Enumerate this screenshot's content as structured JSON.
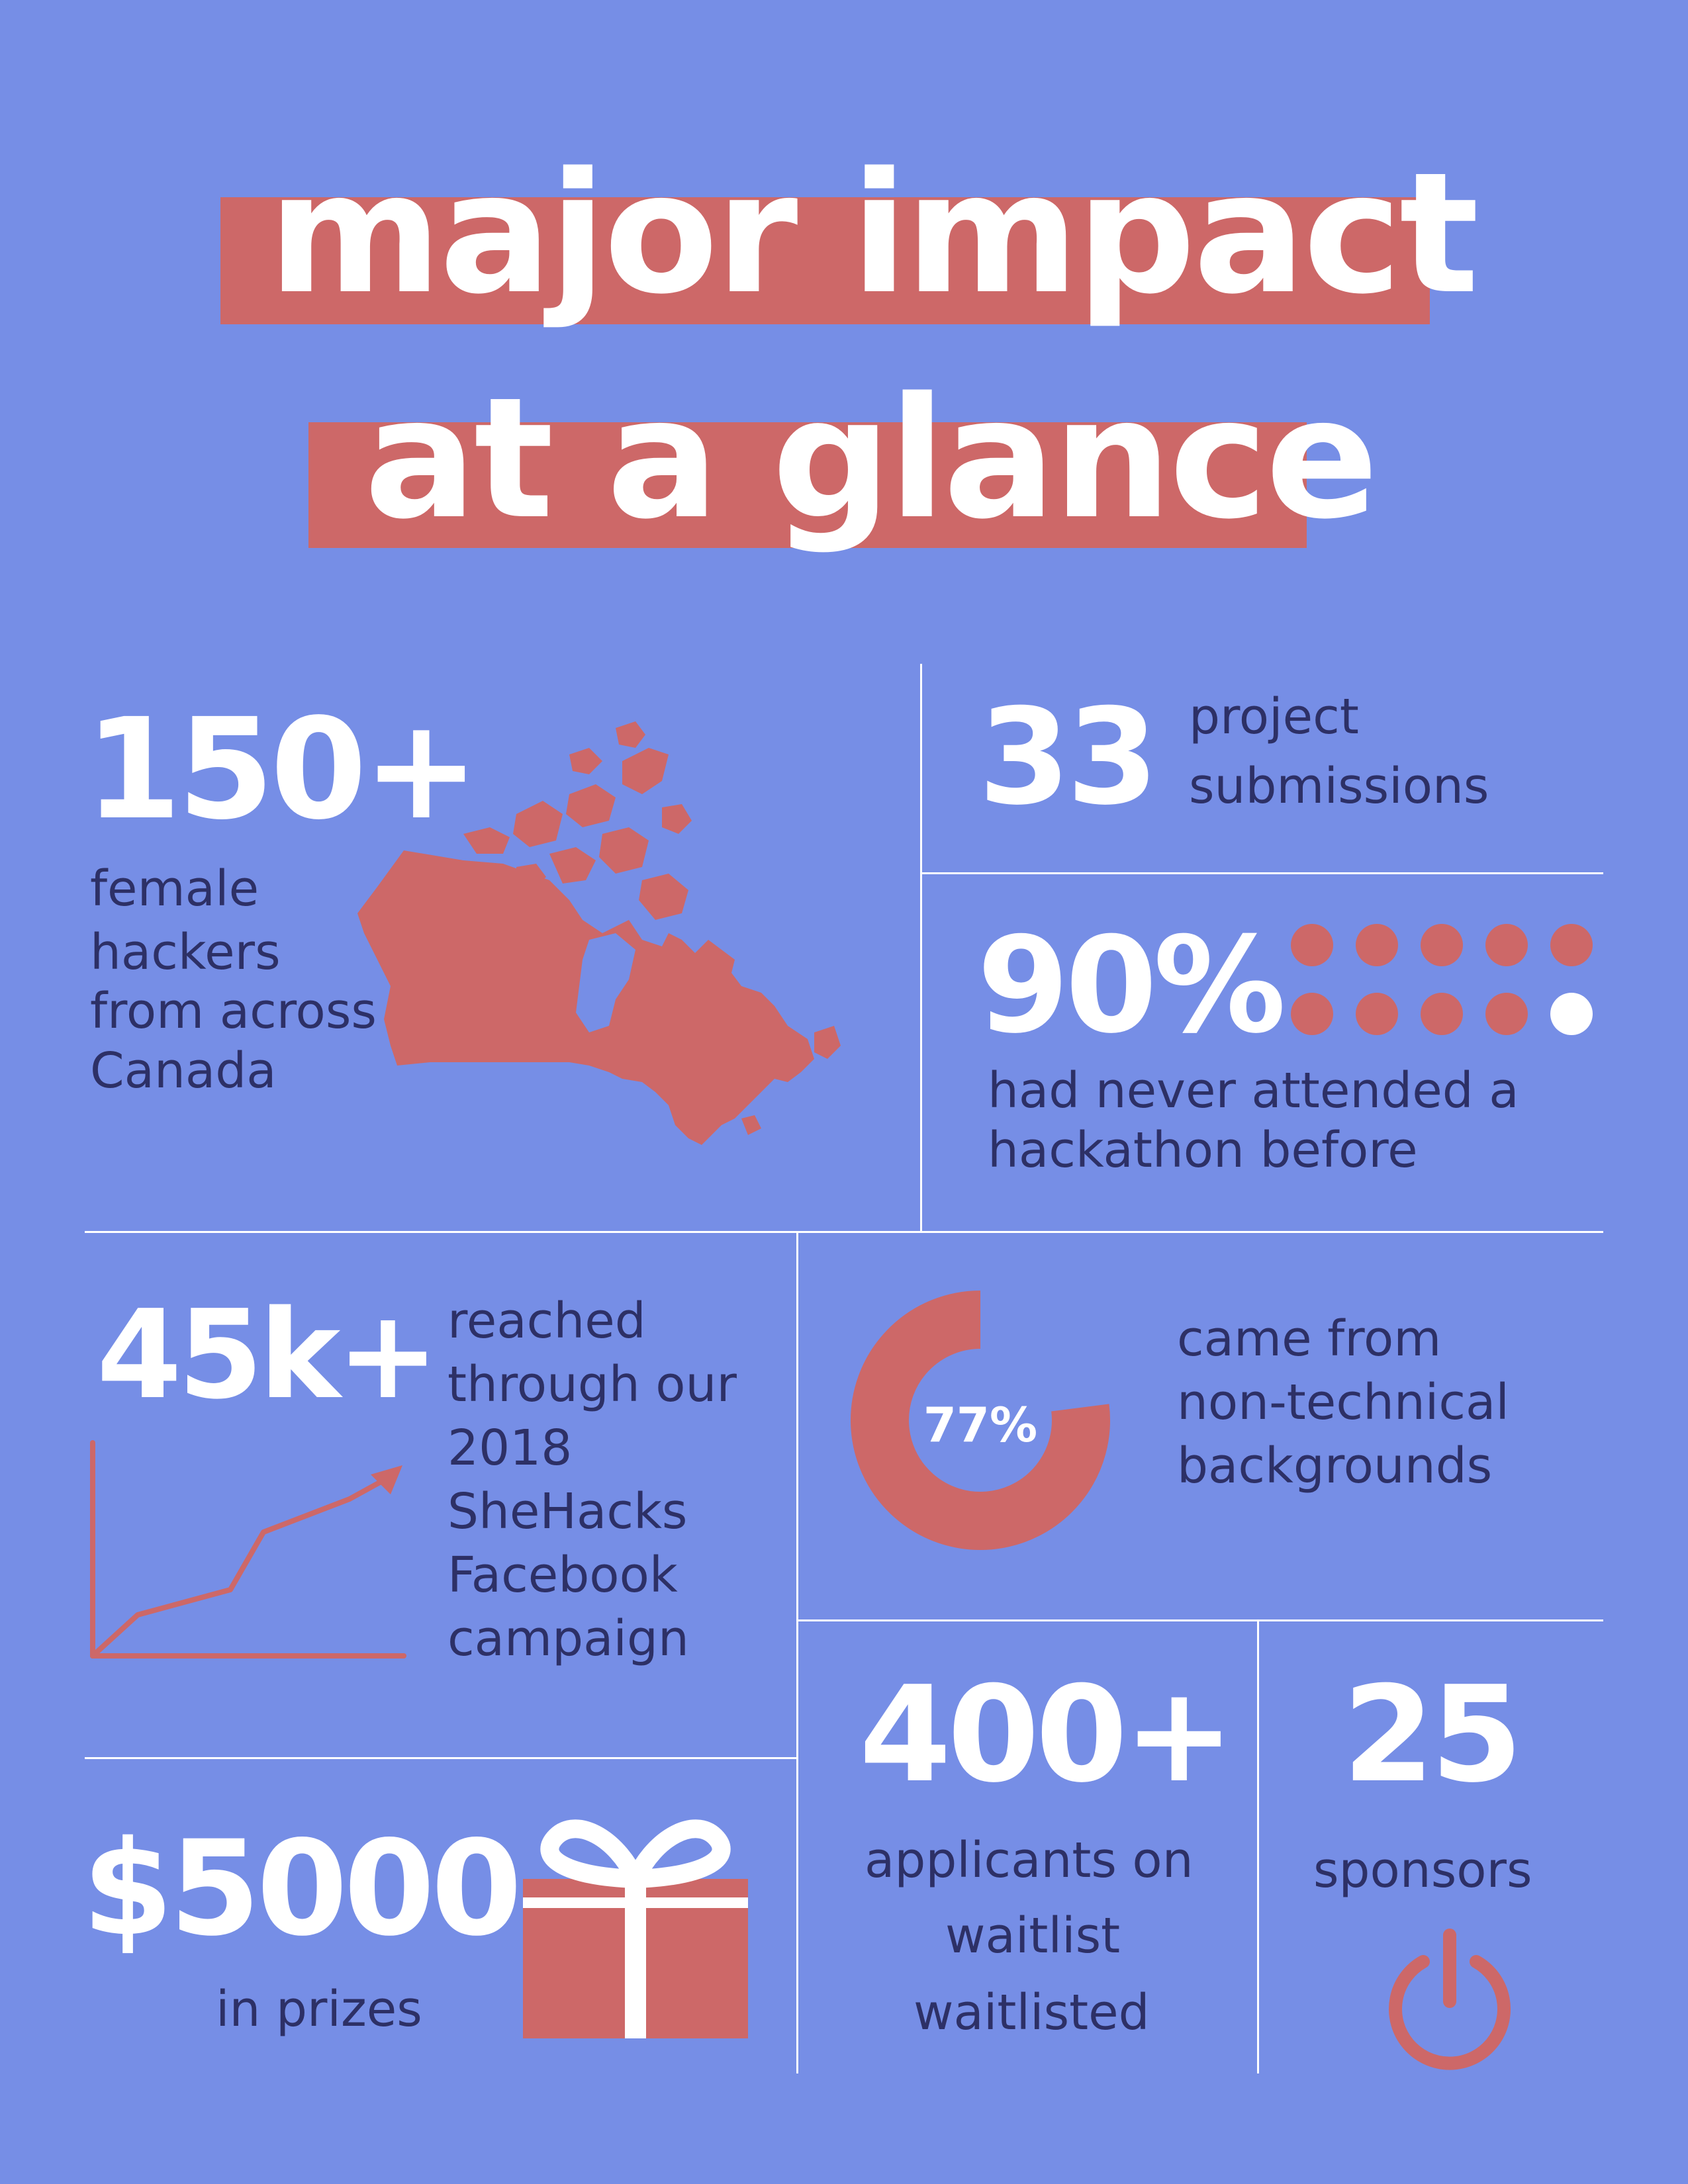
{
  "title": {
    "line1": "major impact",
    "line2": "at a glance"
  },
  "stats": {
    "hackers": {
      "value": "150+",
      "label_lines": [
        "female",
        "hackers",
        "from across",
        "Canada"
      ]
    },
    "projects": {
      "value": "33",
      "label_lines": [
        "project",
        "submissions"
      ]
    },
    "first_time": {
      "value": "90%",
      "label_lines": [
        "had never attended a",
        "hackathon before"
      ],
      "dots_filled": 9,
      "dots_total": 10
    },
    "reach": {
      "value": "45k+",
      "label_lines": [
        "reached",
        "through our",
        "2018",
        "SheHacks",
        "Facebook",
        "campaign"
      ]
    },
    "non_technical": {
      "percent_label": "77%",
      "fraction": 0.77,
      "label_lines": [
        "came from",
        "non-technical",
        "backgrounds"
      ]
    },
    "prizes": {
      "value": "$5000",
      "label": "in prizes"
    },
    "waitlist": {
      "value": "400+",
      "label_lines": [
        "applicants on",
        "waitlist",
        "waitlisted"
      ]
    },
    "sponsors": {
      "value": "25",
      "label": "sponsors"
    }
  },
  "icons": {
    "map": "canada-map-icon",
    "dots": "dot-grid-icon",
    "growth": "growth-chart-icon",
    "donut": "donut-chart-icon",
    "gift": "gift-icon",
    "power": "power-icon"
  },
  "colors": {
    "background": "#768ee6",
    "accent": "#cd6868",
    "dark_text": "#2d3066",
    "white": "#ffffff"
  }
}
